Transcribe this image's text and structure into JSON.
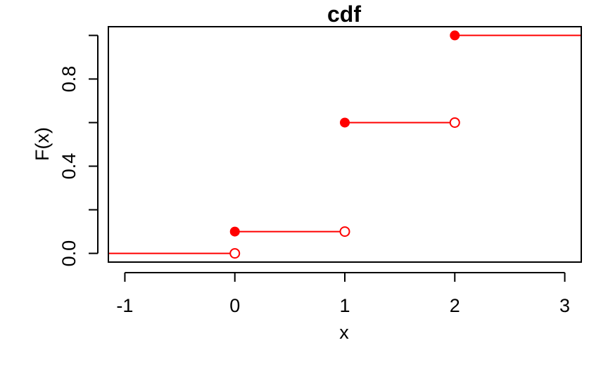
{
  "chart_data": {
    "type": "line",
    "subtype": "step-cdf",
    "title": "cdf",
    "xlabel": "x",
    "ylabel": "F(x)",
    "xlim": [
      -1.15,
      3.15
    ],
    "ylim": [
      -0.04,
      1.04
    ],
    "x_ticks": [
      -1,
      0,
      1,
      2,
      3
    ],
    "x_tick_labels": [
      "-1",
      "0",
      "1",
      "2",
      "3"
    ],
    "y_ticks": [
      0.0,
      0.2,
      0.4,
      0.6,
      0.8,
      1.0
    ],
    "y_tick_labels": [
      "0.0",
      "",
      "0.4",
      "",
      "0.8",
      ""
    ],
    "grid": false,
    "color": "#ff0000",
    "segments": [
      {
        "x_start": -1.15,
        "x_end": 0,
        "y": 0.0,
        "closed_left": false,
        "open_right": true
      },
      {
        "x_start": 0,
        "x_end": 1,
        "y": 0.1,
        "closed_left": true,
        "open_right": true
      },
      {
        "x_start": 1,
        "x_end": 2,
        "y": 0.6,
        "closed_left": true,
        "open_right": true
      },
      {
        "x_start": 2,
        "x_end": 3.15,
        "y": 1.0,
        "closed_left": true,
        "open_right": false
      }
    ]
  }
}
